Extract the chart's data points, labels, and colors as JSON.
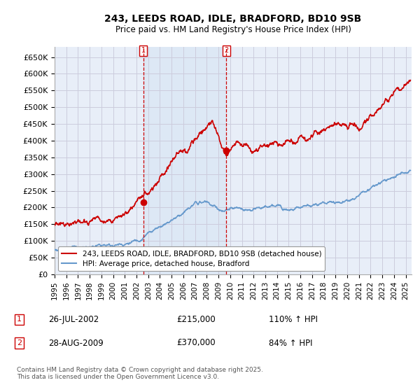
{
  "title": "243, LEEDS ROAD, IDLE, BRADFORD, BD10 9SB",
  "subtitle": "Price paid vs. HM Land Registry's House Price Index (HPI)",
  "ylim": [
    0,
    680000
  ],
  "xlim_start": 1995.0,
  "xlim_end": 2025.5,
  "yticks": [
    0,
    50000,
    100000,
    150000,
    200000,
    250000,
    300000,
    350000,
    400000,
    450000,
    500000,
    550000,
    600000,
    650000
  ],
  "ytick_labels": [
    "£0",
    "£50K",
    "£100K",
    "£150K",
    "£200K",
    "£250K",
    "£300K",
    "£350K",
    "£400K",
    "£450K",
    "£500K",
    "£550K",
    "£600K",
    "£650K"
  ],
  "xticks": [
    1995,
    1996,
    1997,
    1998,
    1999,
    2000,
    2001,
    2002,
    2003,
    2004,
    2005,
    2006,
    2007,
    2008,
    2009,
    2010,
    2011,
    2012,
    2013,
    2014,
    2015,
    2016,
    2017,
    2018,
    2019,
    2020,
    2021,
    2022,
    2023,
    2024,
    2025
  ],
  "hpi_color": "#6699cc",
  "price_color": "#cc0000",
  "grid_color": "#ccccdd",
  "background_color": "#e8eef8",
  "shade_color": "#dde8f5",
  "marker1_x": 2002.57,
  "marker1_y": 215000,
  "marker1_label": "1",
  "marker1_date": "26-JUL-2002",
  "marker1_price": "£215,000",
  "marker1_hpi": "110% ↑ HPI",
  "marker2_x": 2009.66,
  "marker2_y": 370000,
  "marker2_label": "2",
  "marker2_date": "28-AUG-2009",
  "marker2_price": "£370,000",
  "marker2_hpi": "84% ↑ HPI",
  "legend_line1": "243, LEEDS ROAD, IDLE, BRADFORD, BD10 9SB (detached house)",
  "legend_line2": "HPI: Average price, detached house, Bradford",
  "copyright_text": "Contains HM Land Registry data © Crown copyright and database right 2025.\nThis data is licensed under the Open Government Licence v3.0."
}
